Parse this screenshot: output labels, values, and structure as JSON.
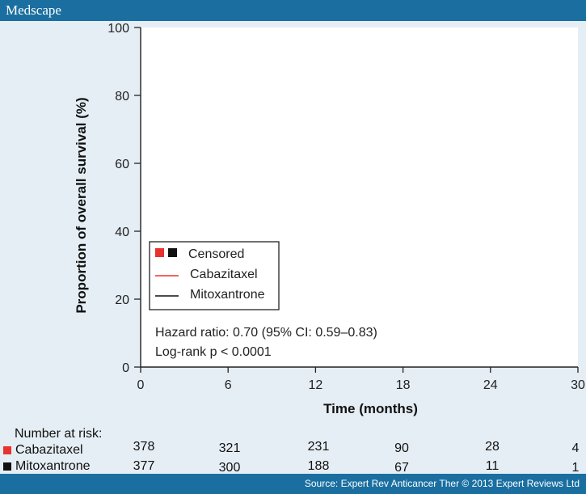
{
  "header": {
    "brand": "Medscape"
  },
  "footer": {
    "source": "Source: Expert Rev Anticancer Ther © 2013 Expert Reviews Ltd"
  },
  "colors": {
    "cabazitaxel": "#e8322d",
    "mitoxantrone": "#111111",
    "bar": "#1a6fa0"
  },
  "chart_data": {
    "type": "line",
    "xlabel": "Time (months)",
    "ylabel": "Proportion of overall survival (%)",
    "xlim": [
      0,
      30
    ],
    "ylim": [
      0,
      100
    ],
    "x_ticks": [
      "0",
      "6",
      "12",
      "18",
      "24",
      "30"
    ],
    "y_ticks": [
      "0",
      "20",
      "40",
      "60",
      "80",
      "100"
    ],
    "legend": {
      "censored": "Censored",
      "entries": [
        "Cabazitaxel",
        "Mitoxantrone"
      ],
      "placement": "lower-left"
    },
    "annotations": [
      "Hazard ratio: 0.70 (95% CI: 0.59–0.83)",
      "Log-rank p < 0.0001"
    ],
    "series": [
      {
        "name": "Cabazitaxel",
        "x": [],
        "y": []
      },
      {
        "name": "Mitoxantrone",
        "x": [],
        "y": []
      }
    ]
  },
  "risk_table": {
    "title": "Number at risk:",
    "rows": [
      {
        "label": "Cabazitaxel",
        "values": [
          "378",
          "321",
          "231",
          "90",
          "28",
          "4"
        ]
      },
      {
        "label": "Mitoxantrone",
        "values": [
          "377",
          "300",
          "188",
          "67",
          "11",
          "1"
        ]
      }
    ]
  }
}
